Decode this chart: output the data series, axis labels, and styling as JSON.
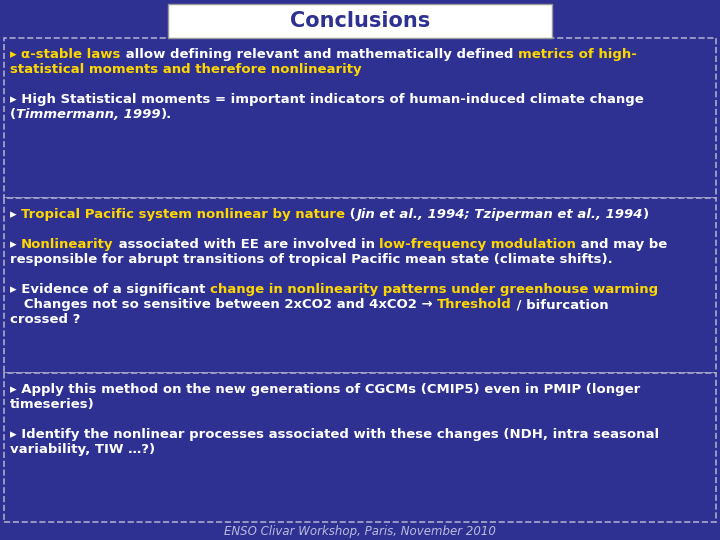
{
  "title": "Conclusions",
  "title_bg": "#ffffff",
  "title_color": "#2e3192",
  "slide_bg": "#2e3192",
  "border_color": "#aaaacc",
  "footer": "ENSO Clivar Workshop, Paris, November 2010",
  "footer_color": "#bbbbdd",
  "box1_lines": [
    [
      {
        "text": "▸ ",
        "color": "#ffd700",
        "bold": true,
        "italic": false
      },
      {
        "text": "α-stable laws",
        "color": "#ffd700",
        "bold": true,
        "italic": false
      },
      {
        "text": " allow defining relevant and mathematically defined ",
        "color": "#ffffff",
        "bold": true,
        "italic": false
      },
      {
        "text": "metrics of high-",
        "color": "#ffd700",
        "bold": true,
        "italic": false
      }
    ],
    [
      {
        "text": "statistical moments and therefore nonlinearity",
        "color": "#ffd700",
        "bold": true,
        "italic": false
      }
    ],
    [],
    [
      {
        "text": "▸ High Statistical moments = important indicators of human-induced climate change",
        "color": "#ffffff",
        "bold": true,
        "italic": false
      }
    ],
    [
      {
        "text": "(",
        "color": "#ffffff",
        "bold": true,
        "italic": false
      },
      {
        "text": "Timmermann, 1999",
        "color": "#ffffff",
        "bold": true,
        "italic": true
      },
      {
        "text": ").",
        "color": "#ffffff",
        "bold": true,
        "italic": false
      }
    ]
  ],
  "box2_lines": [
    [
      {
        "text": "▸ ",
        "color": "#ffffff",
        "bold": true,
        "italic": false
      },
      {
        "text": "Tropical Pacific system nonlinear by nature",
        "color": "#ffd700",
        "bold": true,
        "italic": false
      },
      {
        "text": " (",
        "color": "#ffffff",
        "bold": true,
        "italic": false
      },
      {
        "text": "Jin et al., 1994; Tziperman et al., 1994",
        "color": "#ffffff",
        "bold": true,
        "italic": true
      },
      {
        "text": ")",
        "color": "#ffffff",
        "bold": true,
        "italic": false
      }
    ],
    [],
    [
      {
        "text": "▸ ",
        "color": "#ffffff",
        "bold": true,
        "italic": false
      },
      {
        "text": "Nonlinearity",
        "color": "#ffd700",
        "bold": true,
        "italic": false
      },
      {
        "text": " associated with EE are involved in ",
        "color": "#ffffff",
        "bold": true,
        "italic": false
      },
      {
        "text": "low-frequency modulation",
        "color": "#ffd700",
        "bold": true,
        "italic": false
      },
      {
        "text": " and may be",
        "color": "#ffffff",
        "bold": true,
        "italic": false
      }
    ],
    [
      {
        "text": "responsible for abrupt transitions of tropical Pacific mean state (climate shifts).",
        "color": "#ffffff",
        "bold": true,
        "italic": false
      }
    ],
    [],
    [
      {
        "text": "▸ Evidence of a significant ",
        "color": "#ffffff",
        "bold": true,
        "italic": false
      },
      {
        "text": "change in nonlinearity patterns under greenhouse warming",
        "color": "#ffd700",
        "bold": true,
        "italic": false
      }
    ],
    [
      {
        "text": "   Changes not so sensitive between 2xCO2 and 4xCO2 → ",
        "color": "#ffffff",
        "bold": true,
        "italic": false
      },
      {
        "text": "Threshold",
        "color": "#ffd700",
        "bold": true,
        "italic": false
      },
      {
        "text": " / bifurcation",
        "color": "#ffffff",
        "bold": true,
        "italic": false
      }
    ],
    [
      {
        "text": "crossed ?",
        "color": "#ffffff",
        "bold": true,
        "italic": false
      }
    ]
  ],
  "box3_lines": [
    [
      {
        "text": "▸ Apply this method on the new generations of CGCMs (CMIP5) even in PMIP (longer",
        "color": "#ffffff",
        "bold": true,
        "italic": false
      }
    ],
    [
      {
        "text": "timeseries)",
        "color": "#ffffff",
        "bold": true,
        "italic": false
      }
    ],
    [],
    [
      {
        "text": "▸ Identify the nonlinear processes associated with these changes (NDH, intra seasonal",
        "color": "#ffffff",
        "bold": true,
        "italic": false
      }
    ],
    [
      {
        "text": "variability, TIW …?)",
        "color": "#ffffff",
        "bold": true,
        "italic": false
      }
    ]
  ]
}
